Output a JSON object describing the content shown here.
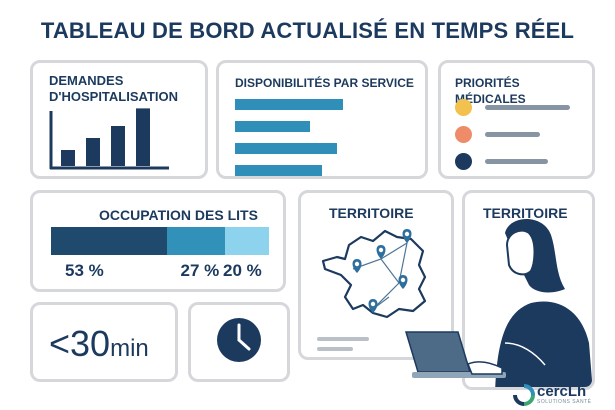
{
  "header": {
    "title": "TABLEAU DE BORD ACTUALISÉ EN TEMPS RÉEL"
  },
  "cards": {
    "admissions": {
      "title_line1": "DEMANDES",
      "title_line2": "D'HOSPITALISATION",
      "bars": [
        0.2,
        0.35,
        0.5,
        0.72
      ]
    },
    "availability": {
      "title": "DISPONIBILITÉS PAR SERVICE",
      "bars": [
        0.72,
        0.5,
        0.68,
        0.58
      ]
    },
    "priorities": {
      "title": "PRIORITÉS MÉDICALES",
      "items": [
        {
          "color": "#f2c14e",
          "level": 0.92
        },
        {
          "color": "#ee8c6a",
          "level": 0.6
        },
        {
          "color": "#1c3a5e",
          "level": 0.68
        }
      ]
    },
    "occupancy": {
      "title": "OCCUPATION DES LITS",
      "segments": [
        {
          "value": 53,
          "label": "53 %",
          "color": "#1f4a6e"
        },
        {
          "value": 27,
          "label": "27 %",
          "color": "#3191b9"
        },
        {
          "value": 20,
          "label": "20 %",
          "color": "#8dd3ee"
        }
      ]
    },
    "territory_map": {
      "title": "TERRITOIRE"
    },
    "territory_person": {
      "title": "TERRITOIRE"
    },
    "wait_time": {
      "symbol": "<",
      "value": "30",
      "unit": "min"
    },
    "clock": {
      "icon": "clock-icon"
    }
  },
  "brand": {
    "name": "cercLh",
    "tagline": "SOLUTIONS SANTÉ"
  },
  "colors": {
    "accent": "#2f8fb8",
    "dark": "#1c3a5e",
    "border": "#d5d7da"
  }
}
